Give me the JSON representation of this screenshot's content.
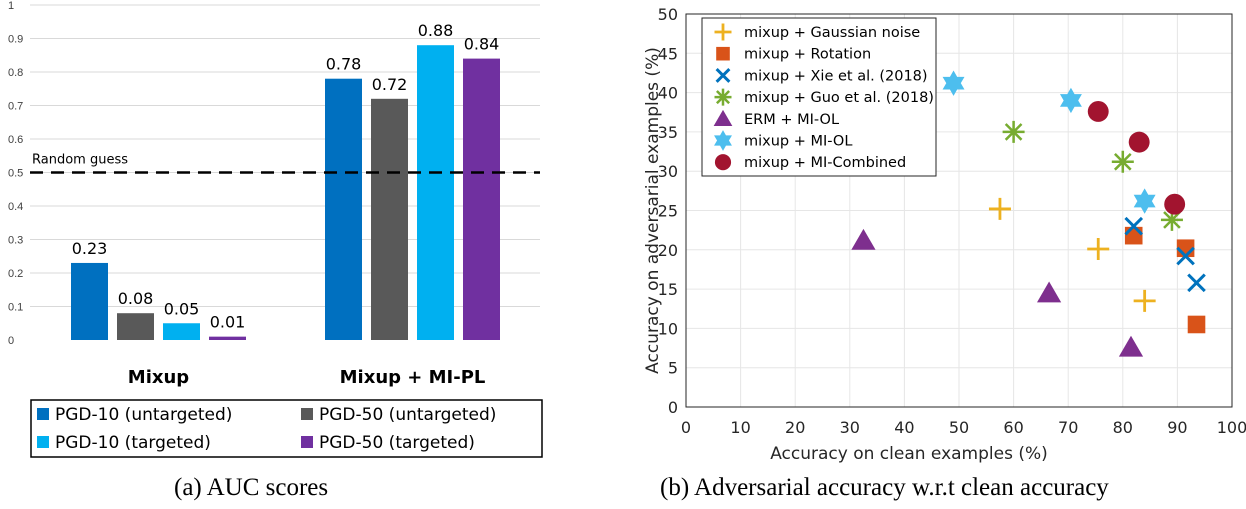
{
  "captions": {
    "left": "(a) AUC scores",
    "right": "(b) Adversarial accuracy w.r.t clean accuracy"
  },
  "chart_data": [
    {
      "type": "bar",
      "title": "",
      "xlabel": "",
      "ylabel": "",
      "ylim": [
        0,
        1.0
      ],
      "yticks": [
        "0",
        "0.1",
        "0.2",
        "0.3",
        "0.4",
        "0.5",
        "0.6",
        "0.7",
        "0.8",
        "0.9",
        "1"
      ],
      "grid": "horizontal",
      "categories": [
        "Mixup",
        "Mixup + MI-PL"
      ],
      "series": [
        {
          "name": "PGD-10 (untargeted)",
          "color": "#0070c0",
          "values": [
            0.23,
            0.78
          ],
          "labels": [
            "0.23",
            "0.78"
          ]
        },
        {
          "name": "PGD-50 (untargeted)",
          "color": "#595959",
          "values": [
            0.08,
            0.72
          ],
          "labels": [
            "0.08",
            "0.72"
          ]
        },
        {
          "name": "PGD-10 (targeted)",
          "color": "#00b0f0",
          "values": [
            0.05,
            0.88
          ],
          "labels": [
            "0.05",
            "0.88"
          ]
        },
        {
          "name": "PGD-50 (targeted)",
          "color": "#7030a0",
          "values": [
            0.01,
            0.84
          ],
          "labels": [
            "0.01",
            "0.84"
          ]
        }
      ],
      "reference_line": {
        "value": 0.5,
        "label": "Random guess",
        "style": "dashed"
      },
      "legend": {
        "placement": "bottom"
      }
    },
    {
      "type": "scatter",
      "title": "",
      "xlabel": "Accuracy on clean examples (%)",
      "ylabel": "Accuracy on adversarial examples (%)",
      "xlim": [
        0,
        100
      ],
      "ylim": [
        0,
        50
      ],
      "xticks": [
        "0",
        "10",
        "20",
        "30",
        "40",
        "50",
        "60",
        "70",
        "80",
        "90",
        "100"
      ],
      "yticks": [
        "0",
        "5",
        "10",
        "15",
        "20",
        "25",
        "30",
        "35",
        "40",
        "45",
        "50"
      ],
      "grid": true,
      "legend": {
        "placement": "top-left"
      },
      "series": [
        {
          "name": "mixup + Gaussian noise",
          "marker": "plus",
          "color": "#edb120",
          "points": [
            [
              57.5,
              25.2
            ],
            [
              75.5,
              20.1
            ],
            [
              84.0,
              13.5
            ]
          ]
        },
        {
          "name": "mixup + Rotation",
          "marker": "square",
          "color": "#d95319",
          "points": [
            [
              82.0,
              21.8
            ],
            [
              91.5,
              20.2
            ],
            [
              93.5,
              10.5
            ]
          ]
        },
        {
          "name": "mixup + Xie et al. (2018)",
          "marker": "x",
          "color": "#0072bd",
          "points": [
            [
              82.0,
              23.0
            ],
            [
              91.5,
              19.2
            ],
            [
              93.5,
              15.8
            ]
          ]
        },
        {
          "name": "mixup + Guo et al. (2018)",
          "marker": "asterisk",
          "color": "#77ac30",
          "points": [
            [
              60.0,
              35.0
            ],
            [
              80.0,
              31.2
            ],
            [
              89.0,
              23.8
            ]
          ]
        },
        {
          "name": "ERM + MI-OL",
          "marker": "triangle",
          "color": "#7e2f8e",
          "points": [
            [
              32.5,
              21.2
            ],
            [
              66.5,
              14.5
            ],
            [
              81.5,
              7.6
            ]
          ]
        },
        {
          "name": "mixup + MI-OL",
          "marker": "hexagram",
          "color": "#4dbeee",
          "points": [
            [
              49.0,
              41.2
            ],
            [
              70.5,
              39.0
            ],
            [
              84.0,
              26.2
            ]
          ]
        },
        {
          "name": "mixup + MI-Combined",
          "marker": "circle",
          "color": "#a2142f",
          "points": [
            [
              75.5,
              37.6
            ],
            [
              83.0,
              33.7
            ],
            [
              89.5,
              25.8
            ]
          ]
        }
      ]
    }
  ]
}
